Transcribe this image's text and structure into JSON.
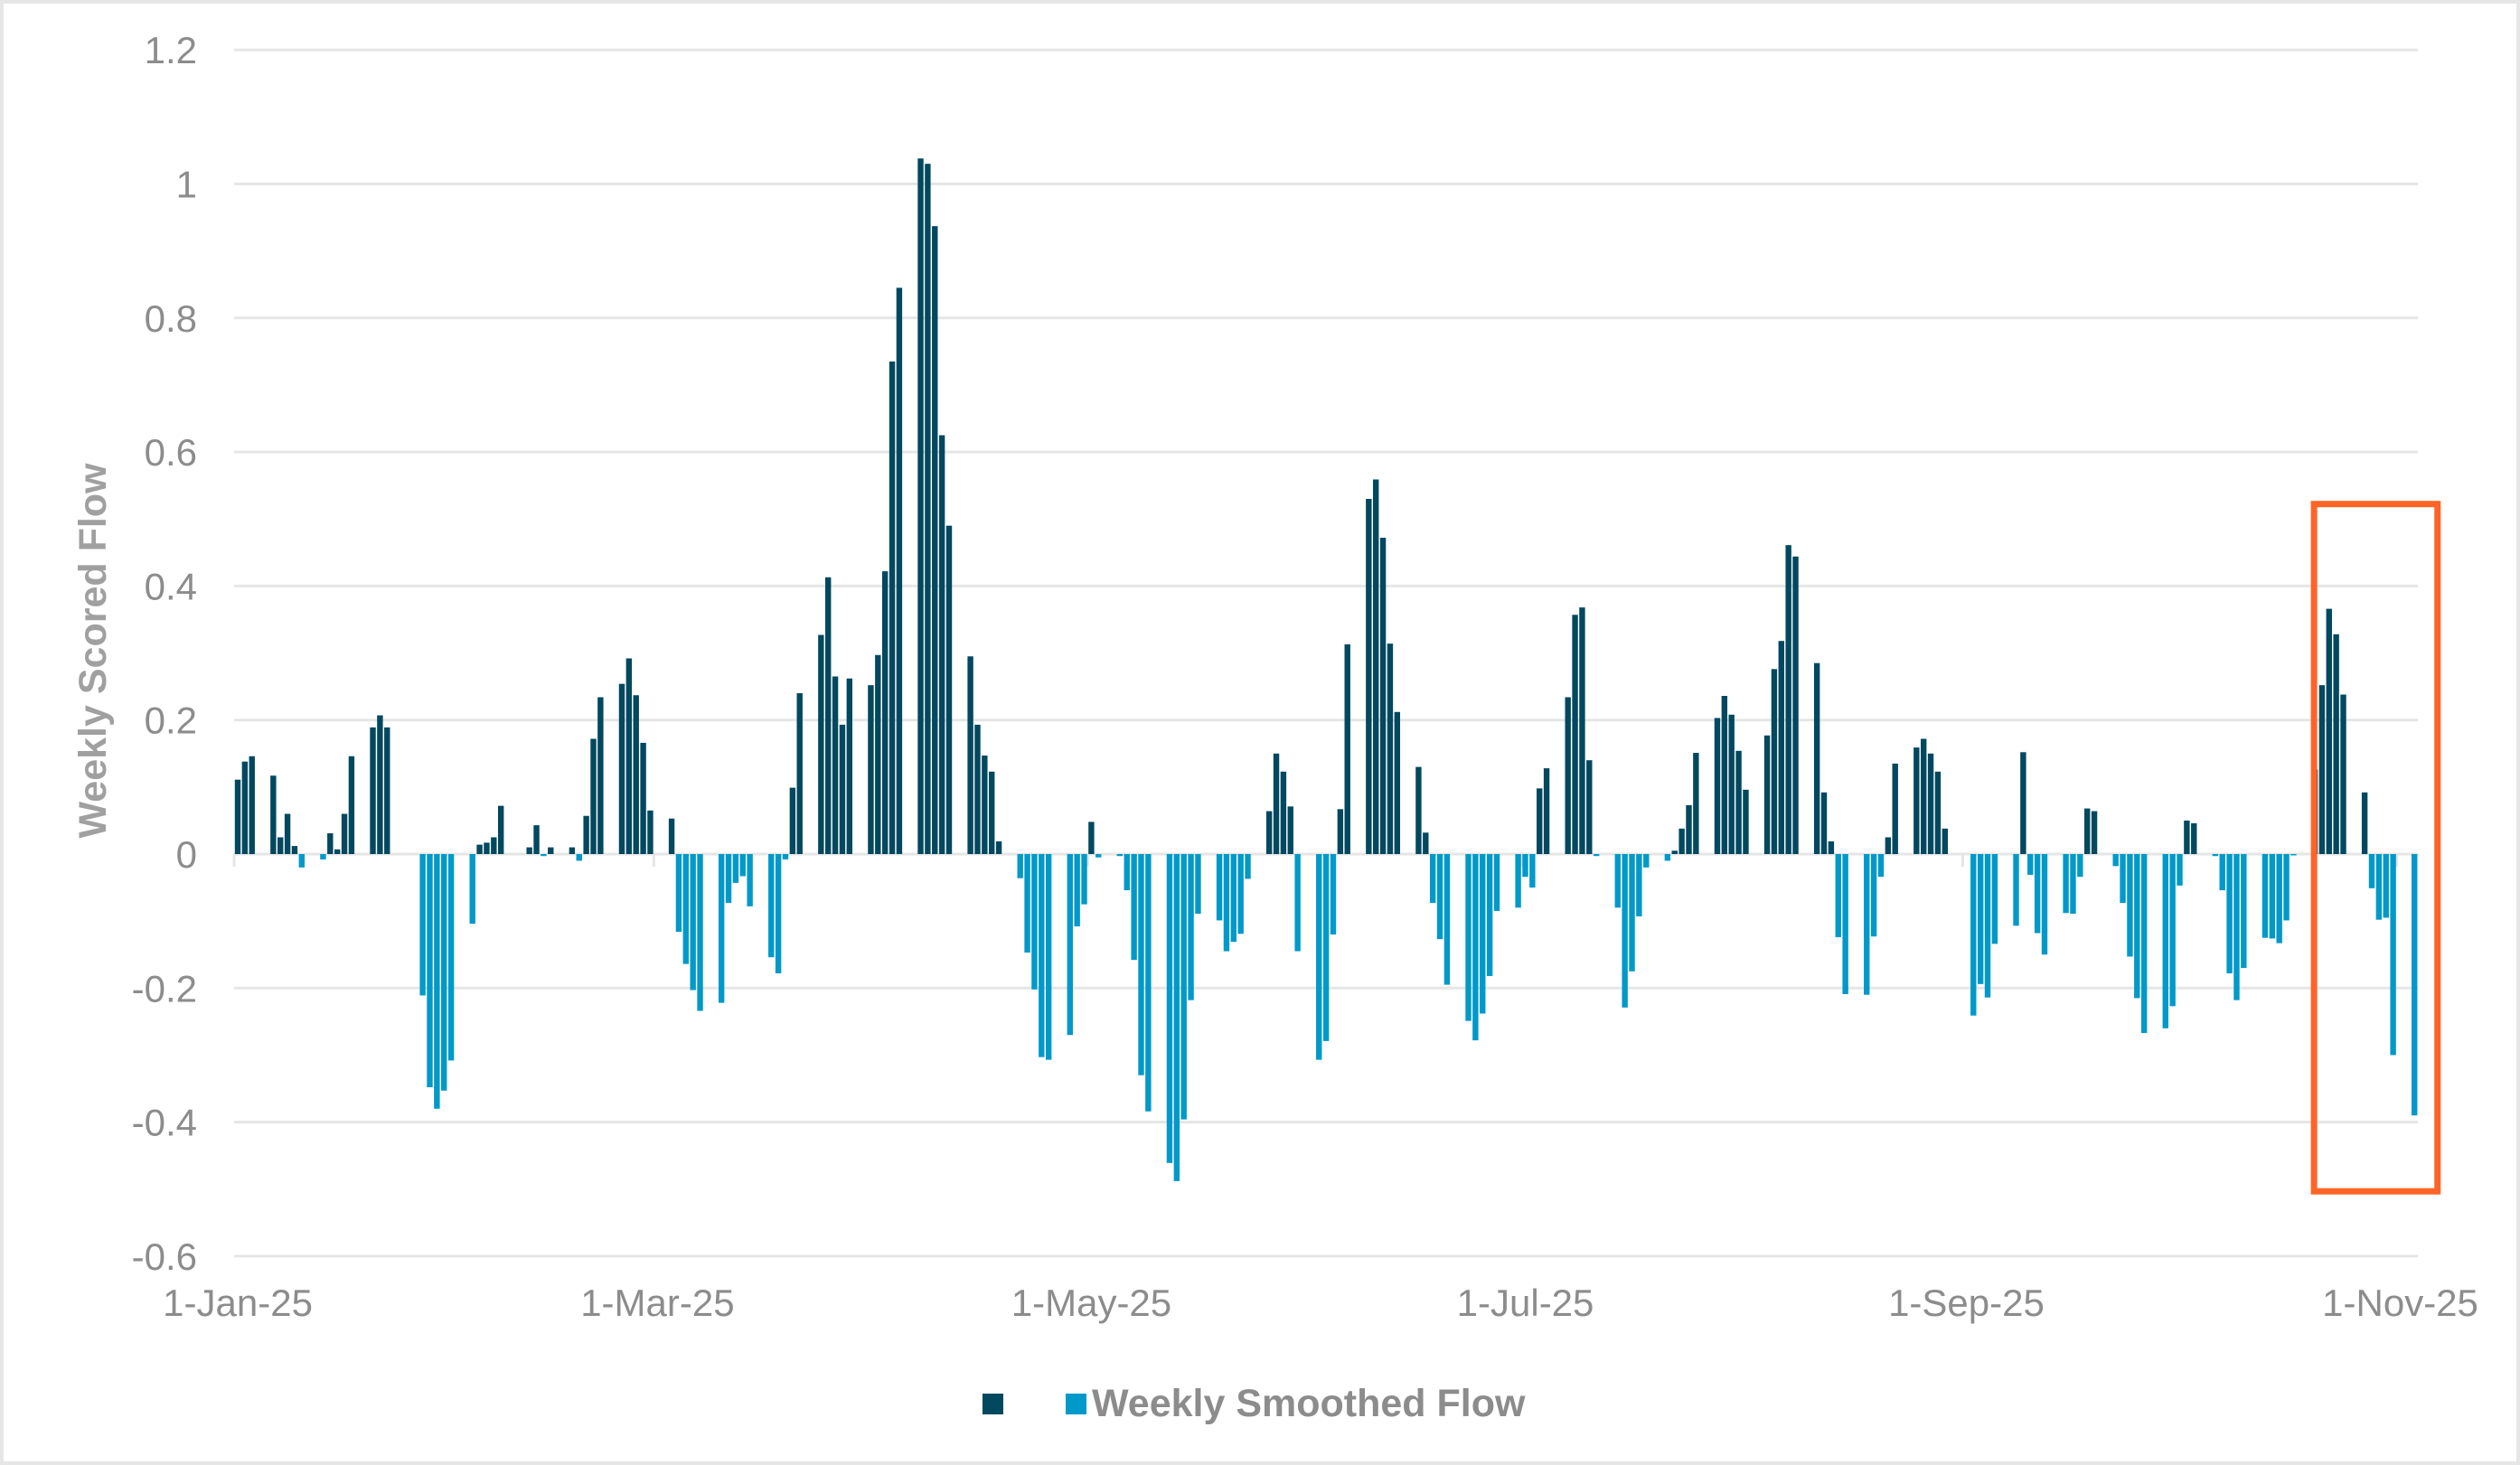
{
  "chart_data": {
    "type": "bar",
    "title": "",
    "xlabel": "",
    "ylabel": "Weekly Scored Flow",
    "ylim": [
      -0.6,
      1.2
    ],
    "yticks": [
      1.2,
      1,
      0.8,
      0.6,
      0.4,
      0.2,
      0,
      -0.2,
      -0.4,
      -0.6
    ],
    "ytick_labels": [
      "1.2",
      "1",
      "0.8",
      "0.6",
      "0.4",
      "0.2",
      "0",
      "-0.2",
      "-0.4",
      "-0.6"
    ],
    "grid": true,
    "x_axis": {
      "start_date": "1-Jan-25",
      "end_date": "3-Nov-25",
      "num_days": 307,
      "tick_labels": [
        "1-Jan-25",
        "1-Mar-25",
        "1-May-25",
        "1-Jul-25",
        "1-Sep-25",
        "1-Nov-25"
      ],
      "tick_day_index": [
        0,
        59,
        120,
        181,
        243,
        304
      ]
    },
    "legend_position": "bottom",
    "legend": [
      {
        "name": "",
        "color": "#02485f"
      },
      {
        "name": "Weekly Smoothed Flow",
        "color": "#0099c9"
      }
    ],
    "colors": {
      "positive": "#02485f",
      "negative": "#0099c9",
      "grid": "#e6e6e6",
      "highlight": "#ff6427"
    },
    "series": [
      {
        "name": "Weekly Smoothed Flow",
        "x_day_index": [
          0,
          1,
          2,
          5,
          6,
          7,
          8,
          9,
          12,
          13,
          14,
          15,
          16,
          19,
          20,
          21,
          26,
          27,
          28,
          29,
          30,
          33,
          34,
          35,
          36,
          37,
          41,
          42,
          43,
          44,
          47,
          48,
          49,
          50,
          51,
          54,
          55,
          56,
          57,
          58,
          61,
          62,
          63,
          64,
          65,
          68,
          69,
          70,
          71,
          72,
          75,
          76,
          77,
          78,
          79,
          82,
          83,
          84,
          85,
          86,
          89,
          90,
          91,
          92,
          93,
          96,
          97,
          98,
          99,
          100,
          103,
          104,
          105,
          106,
          107,
          110,
          111,
          112,
          113,
          114,
          117,
          118,
          119,
          120,
          121,
          124,
          125,
          126,
          127,
          128,
          131,
          132,
          133,
          134,
          135,
          138,
          139,
          140,
          141,
          142,
          145,
          146,
          147,
          148,
          149,
          152,
          153,
          154,
          155,
          156,
          159,
          160,
          161,
          162,
          163,
          166,
          167,
          168,
          169,
          170,
          173,
          174,
          175,
          176,
          177,
          180,
          181,
          182,
          183,
          184,
          187,
          188,
          189,
          190,
          191,
          194,
          195,
          196,
          197,
          198,
          201,
          202,
          203,
          204,
          205,
          208,
          209,
          210,
          211,
          212,
          215,
          216,
          217,
          218,
          219,
          222,
          223,
          224,
          225,
          226,
          229,
          230,
          231,
          232,
          233,
          236,
          237,
          238,
          239,
          240,
          244,
          245,
          246,
          247,
          250,
          251,
          252,
          253,
          254,
          257,
          258,
          259,
          260,
          261,
          264,
          265,
          266,
          267,
          268,
          271,
          272,
          273,
          274,
          275,
          278,
          279,
          280,
          281,
          282,
          285,
          286,
          287,
          288,
          289,
          292,
          293,
          294,
          295,
          296,
          299,
          300,
          301,
          302,
          303,
          306
        ],
        "values": [
          0.111,
          0.138,
          0.146,
          0.117,
          0.025,
          0.06,
          0.012,
          -0.02,
          -0.008,
          0.031,
          0.007,
          0.06,
          0.146,
          0.189,
          0.207,
          0.189,
          -0.211,
          -0.348,
          -0.38,
          -0.353,
          -0.308,
          -0.104,
          0.014,
          0.017,
          0.025,
          0.072,
          0.01,
          0.043,
          -0.003,
          0.01,
          0.01,
          -0.01,
          0.057,
          0.172,
          0.234,
          0.254,
          0.292,
          0.237,
          0.166,
          0.065,
          0.053,
          -0.116,
          -0.164,
          -0.203,
          -0.234,
          -0.222,
          -0.073,
          -0.043,
          -0.033,
          -0.078,
          -0.154,
          -0.178,
          -0.008,
          0.099,
          0.24,
          0.327,
          0.413,
          0.265,
          0.193,
          0.262,
          0.252,
          0.297,
          0.422,
          0.735,
          0.845,
          1.038,
          1.03,
          0.937,
          0.625,
          0.49,
          0.295,
          0.193,
          0.147,
          0.123,
          0.019,
          -0.036,
          -0.147,
          -0.202,
          -0.303,
          -0.307,
          -0.27,
          -0.108,
          -0.075,
          0.048,
          -0.005,
          -0.003,
          -0.054,
          -0.158,
          -0.33,
          -0.384,
          -0.461,
          -0.488,
          -0.396,
          -0.218,
          -0.089,
          -0.099,
          -0.145,
          -0.131,
          -0.119,
          -0.037,
          0.064,
          0.15,
          0.123,
          0.071,
          -0.145,
          -0.307,
          -0.279,
          -0.12,
          0.067,
          0.313,
          0.53,
          0.559,
          0.472,
          0.314,
          0.212,
          0.13,
          0.032,
          -0.073,
          -0.127,
          -0.195,
          -0.249,
          -0.278,
          -0.238,
          -0.182,
          -0.085,
          -0.08,
          -0.034,
          -0.05,
          0.098,
          0.128,
          0.234,
          0.357,
          0.368,
          0.14,
          -0.003,
          -0.08,
          -0.229,
          -0.175,
          -0.093,
          -0.02,
          -0.01,
          0.005,
          0.038,
          0.073,
          0.151,
          0.203,
          0.236,
          0.208,
          0.154,
          0.096,
          0.177,
          0.276,
          0.318,
          0.461,
          0.444,
          0.285,
          0.092,
          0.019,
          -0.124,
          -0.209,
          -0.21,
          -0.123,
          -0.034,
          0.025,
          0.135,
          0.159,
          0.172,
          0.15,
          0.123,
          0.038,
          -0.241,
          -0.194,
          -0.214,
          -0.134,
          -0.107,
          0.152,
          -0.031,
          -0.118,
          -0.15,
          -0.088,
          -0.089,
          -0.034,
          0.068,
          0.064,
          -0.018,
          -0.073,
          -0.153,
          -0.215,
          -0.267,
          -0.26,
          -0.227,
          -0.047,
          0.05,
          0.046,
          -0.003,
          -0.054,
          -0.178,
          -0.218,
          -0.17,
          -0.125,
          -0.126,
          -0.133,
          -0.099,
          -0.002,
          0.126,
          0.252,
          0.366,
          0.328,
          0.238,
          0.092,
          -0.051,
          -0.098,
          -0.095,
          -0.3,
          -0.39
        ]
      }
    ],
    "annotations": [
      {
        "type": "rectangle",
        "color": "#ff6427",
        "x_day_range": [
          292,
          306
        ],
        "y_range": [
          0.527,
          -0.508
        ],
        "description": "highlighted recent period"
      }
    ]
  },
  "legend": {
    "items": [
      {
        "label": "",
        "color": "#02485f"
      },
      {
        "label": "Weekly Smoothed Flow",
        "color": "#0099c9"
      }
    ]
  },
  "axis": {
    "ylabel": "Weekly Scored Flow"
  }
}
